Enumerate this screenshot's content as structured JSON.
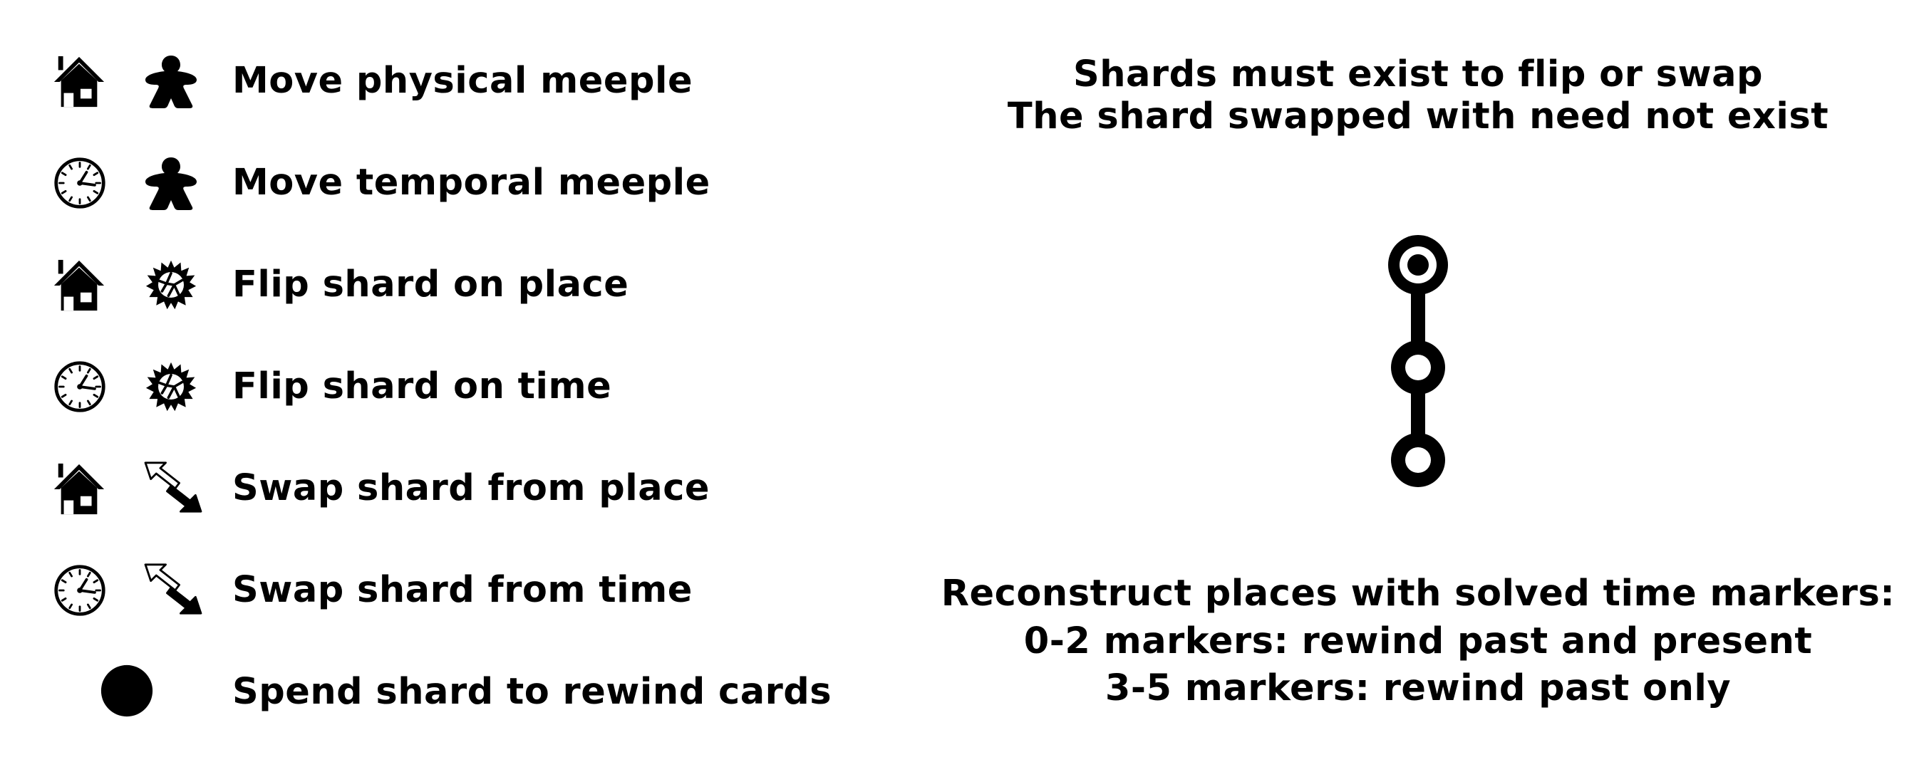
{
  "legend": {
    "rows": [
      {
        "label": "Move physical meeple",
        "first_icon": "house-icon",
        "second_icon": "meeple-icon"
      },
      {
        "label": "Move temporal meeple",
        "first_icon": "clock-icon",
        "second_icon": "meeple-icon"
      },
      {
        "label": "Flip shard on place",
        "first_icon": "house-icon",
        "second_icon": "shard-icon"
      },
      {
        "label": "Flip shard on time",
        "first_icon": "clock-icon",
        "second_icon": "shard-icon"
      },
      {
        "label": "Swap shard from place",
        "first_icon": "house-icon",
        "second_icon": "swap-arrows-icon"
      },
      {
        "label": "Swap shard from time",
        "first_icon": "clock-icon",
        "second_icon": "swap-arrows-icon"
      },
      {
        "label": "Spend shard to rewind cards",
        "first_icon": "filled-circle-icon"
      }
    ]
  },
  "rules": {
    "shard_rule_line1": "Shards must exist to flip or swap",
    "shard_rule_line2": "The shard swapped with need not exist",
    "reconstruct_line1": "Reconstruct places with solved time markers:",
    "reconstruct_line2": "0-2 markers: rewind past and present",
    "reconstruct_line3": "3-5 markers: rewind past only"
  },
  "track_icon": "timeline-track-icon",
  "colors": {
    "ink": "#000000",
    "paper": "#ffffff"
  }
}
